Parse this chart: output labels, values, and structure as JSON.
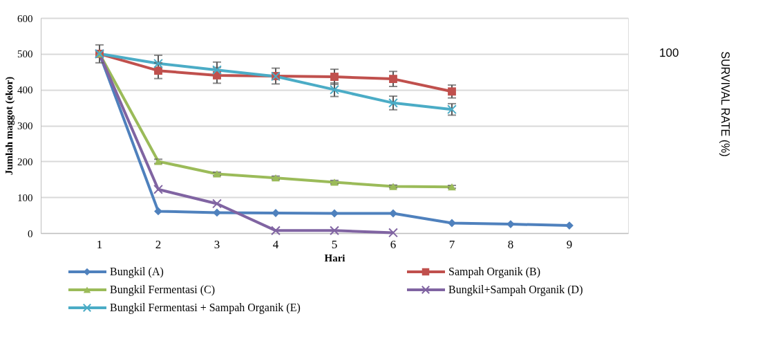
{
  "chart_data": {
    "type": "line",
    "xlabel": "Hari",
    "ylabel": "Jumlah maggot (ekor)",
    "annotations": [
      "100",
      "SURVIVAL RATE (%)"
    ],
    "categories": [
      "1",
      "2",
      "3",
      "4",
      "5",
      "6",
      "7",
      "8",
      "9"
    ],
    "ylim": [
      0,
      600
    ],
    "yticks": [
      0,
      100,
      200,
      300,
      400,
      500,
      600
    ],
    "grid": "y",
    "legend": "bottom",
    "line_style": "solid",
    "series": [
      {
        "name": "Bungkil (A)",
        "color": "#4f81bd",
        "marker": "diamond",
        "values": [
          500,
          61,
          57,
          56,
          55,
          55,
          28,
          25,
          21
        ]
      },
      {
        "name": "Sampah Organik (B)",
        "color": "#c0504d",
        "marker": "square",
        "values": [
          500,
          453,
          440,
          438,
          436,
          430,
          395,
          null,
          null
        ],
        "errors": [
          25,
          22,
          22,
          22,
          21,
          21,
          18,
          null,
          null
        ]
      },
      {
        "name": "Bungkil Fermentasi (C)",
        "color": "#9bbb59",
        "marker": "triangle",
        "values": [
          500,
          200,
          165,
          154,
          142,
          130,
          129,
          null,
          null
        ],
        "errors": [
          null,
          6,
          5,
          5,
          5,
          4,
          4,
          null,
          null
        ]
      },
      {
        "name": "Bungkil+Sampah Organik (D)",
        "color": "#8064a2",
        "marker": "cross",
        "values": [
          500,
          122,
          82,
          7,
          7,
          1,
          null,
          null,
          null
        ]
      },
      {
        "name": "Bungkil Fermentasi + Sampah Organik (E)",
        "color": "#4bacc6",
        "marker": "cross",
        "values": [
          500,
          473,
          455,
          437,
          400,
          363,
          345,
          null,
          null
        ],
        "errors": [
          null,
          23,
          22,
          null,
          19,
          19,
          16,
          null,
          null
        ]
      }
    ]
  }
}
